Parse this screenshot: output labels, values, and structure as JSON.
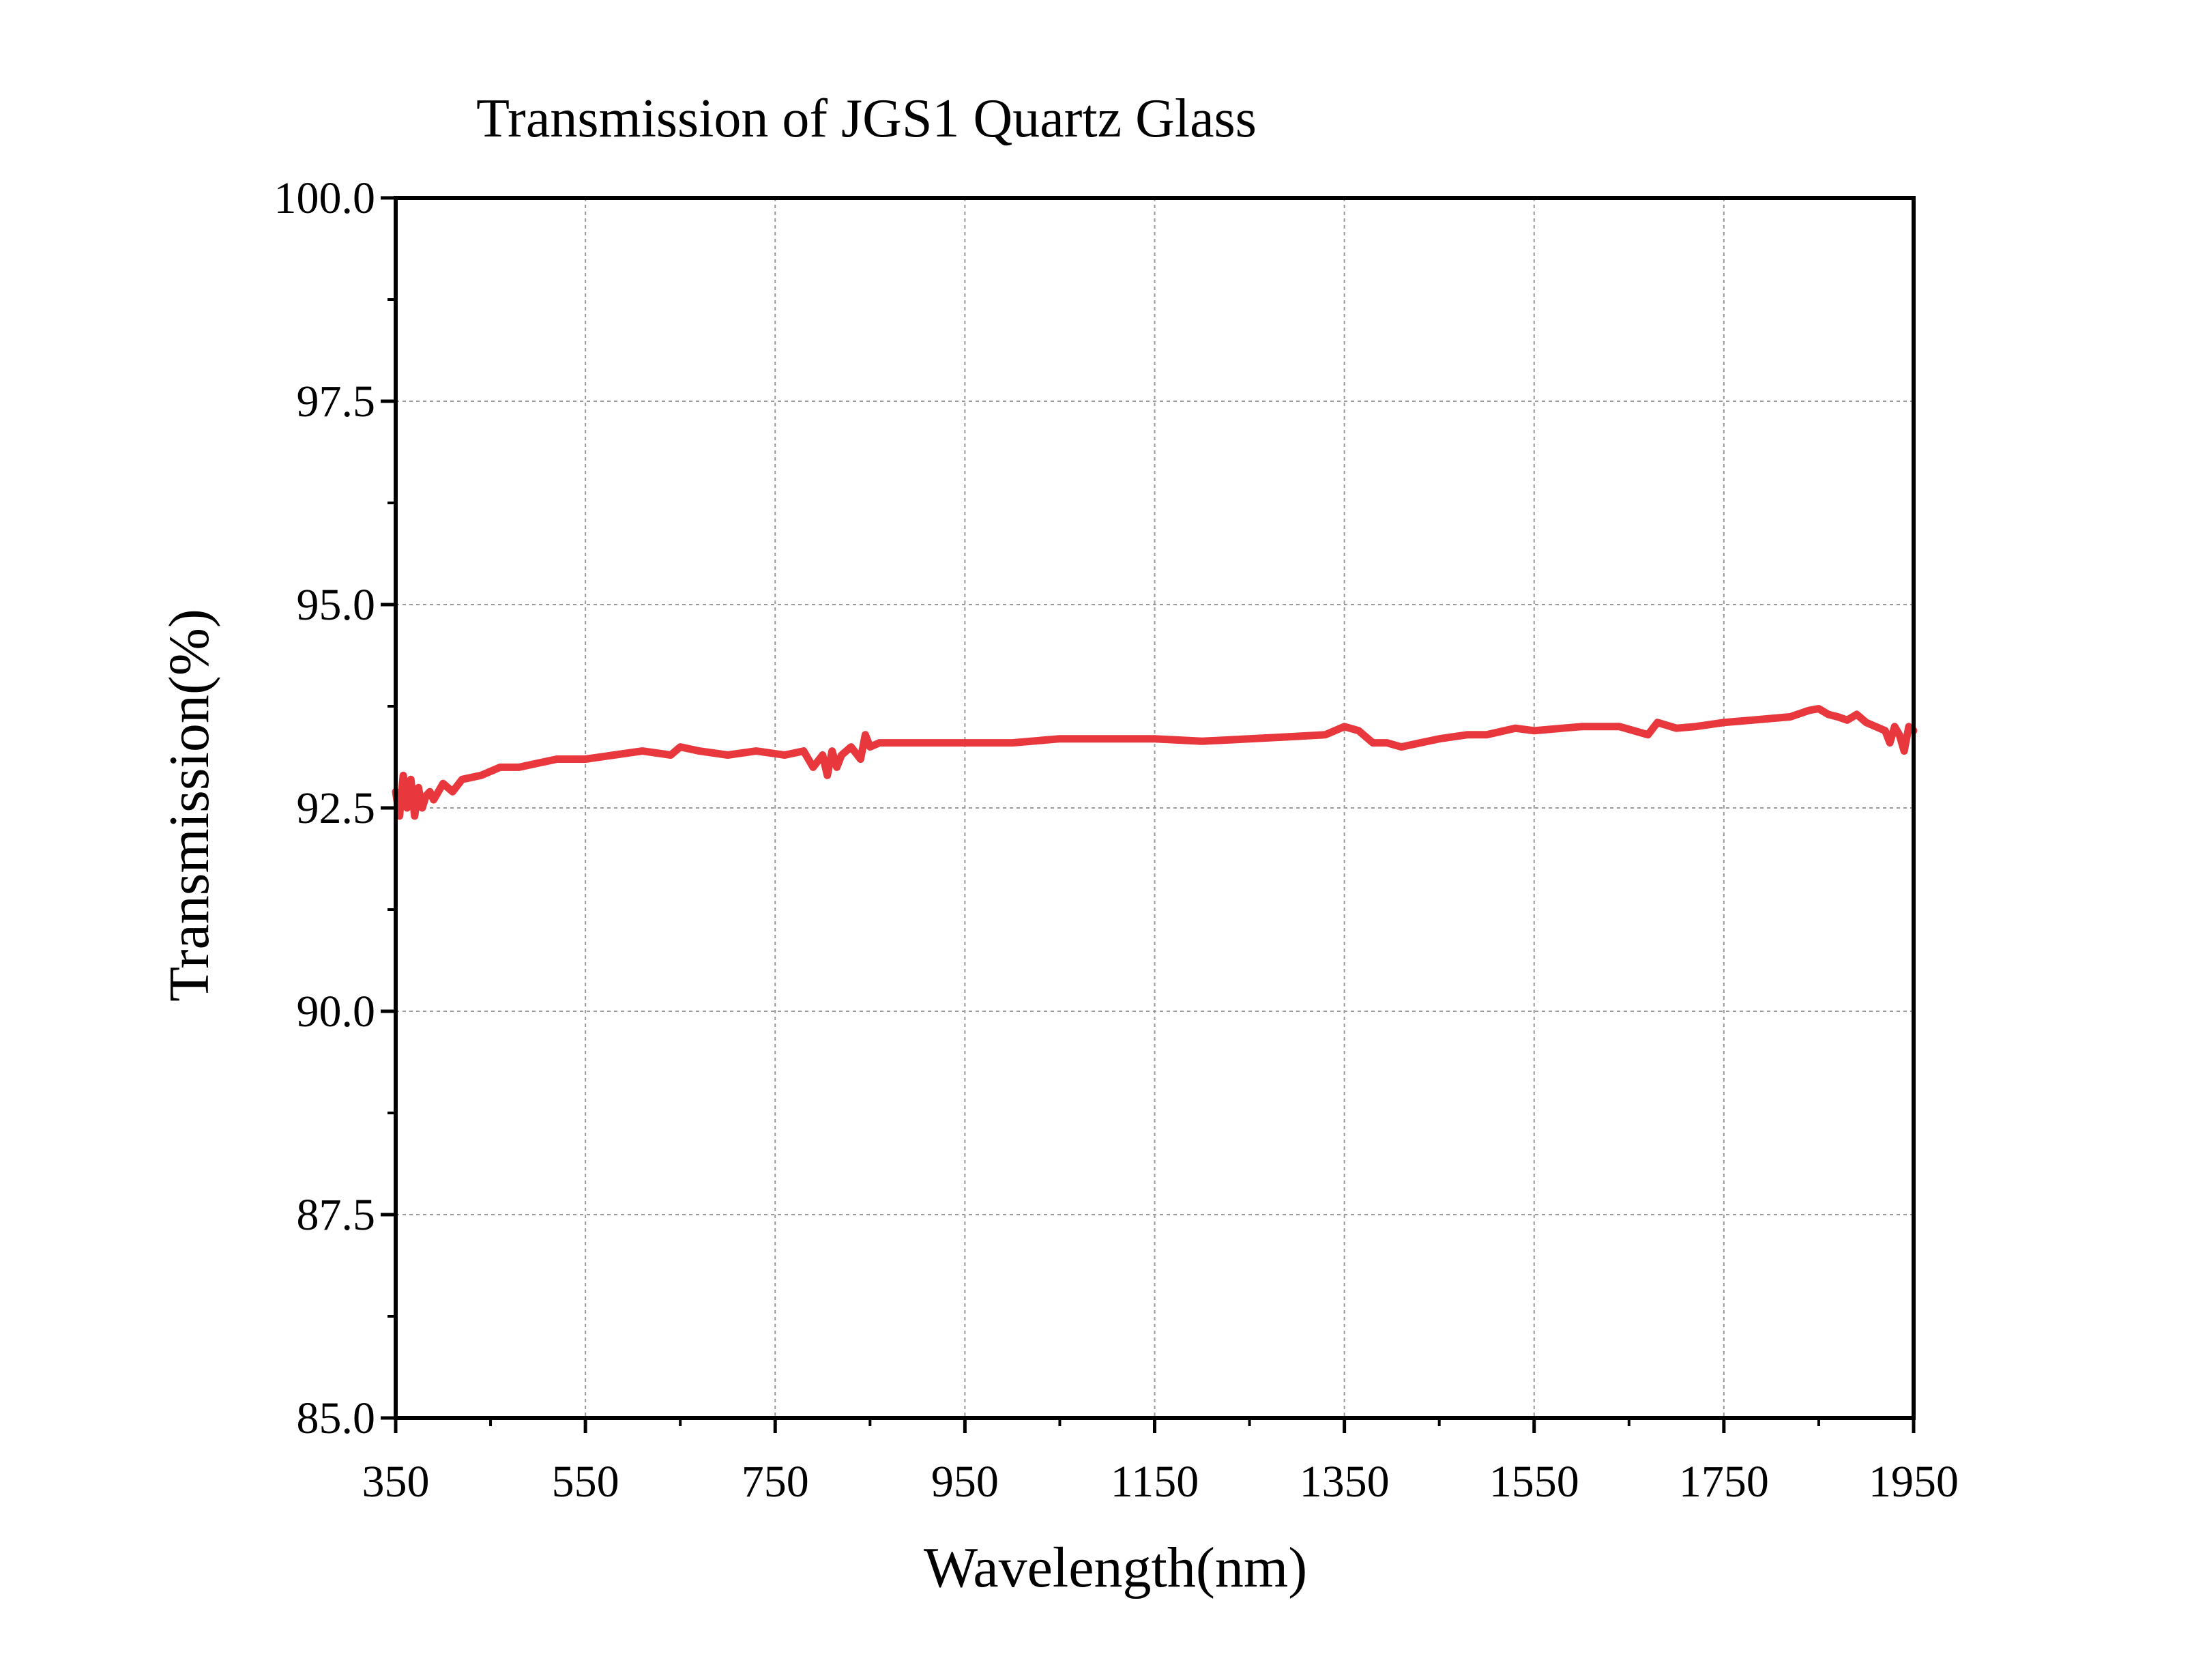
{
  "chart_data": {
    "type": "line",
    "title": "Transmission of JGS1 Quartz Glass",
    "xlabel": "Wavelength(nm)",
    "ylabel": "Transmission(%)",
    "xlim": [
      350,
      1950
    ],
    "ylim": [
      85.0,
      100.0
    ],
    "x_ticks": [
      350,
      550,
      750,
      950,
      1150,
      1350,
      1550,
      1750,
      1950
    ],
    "x_tick_labels": [
      "350",
      "550",
      "750",
      "950",
      "1150",
      "1350",
      "1550",
      "1750",
      "1950"
    ],
    "y_ticks": [
      85.0,
      87.5,
      90.0,
      92.5,
      95.0,
      97.5,
      100.0
    ],
    "y_tick_labels": [
      "85.0",
      "87.5",
      "90.0",
      "92.5",
      "95.0",
      "97.5",
      "100.0"
    ],
    "grid": true,
    "legend": false,
    "series": [
      {
        "color": "#e8383d",
        "x": [
          350,
          354,
          358,
          362,
          366,
          370,
          374,
          378,
          382,
          386,
          390,
          400,
          410,
          420,
          440,
          460,
          480,
          500,
          520,
          550,
          580,
          610,
          640,
          650,
          670,
          700,
          730,
          760,
          780,
          790,
          800,
          805,
          810,
          815,
          820,
          830,
          840,
          845,
          850,
          860,
          880,
          900,
          950,
          1000,
          1050,
          1100,
          1150,
          1200,
          1250,
          1300,
          1330,
          1350,
          1365,
          1380,
          1395,
          1410,
          1430,
          1450,
          1480,
          1500,
          1530,
          1550,
          1580,
          1600,
          1640,
          1670,
          1680,
          1700,
          1720,
          1750,
          1780,
          1800,
          1820,
          1840,
          1850,
          1860,
          1870,
          1880,
          1890,
          1900,
          1910,
          1920,
          1925,
          1930,
          1935,
          1940,
          1945,
          1950
        ],
        "y": [
          92.7,
          92.4,
          92.9,
          92.5,
          92.85,
          92.4,
          92.75,
          92.5,
          92.65,
          92.7,
          92.6,
          92.8,
          92.7,
          92.85,
          92.9,
          93.0,
          93.0,
          93.05,
          93.1,
          93.1,
          93.15,
          93.2,
          93.15,
          93.25,
          93.2,
          93.15,
          93.2,
          93.15,
          93.2,
          93.0,
          93.15,
          92.9,
          93.2,
          93.0,
          93.15,
          93.25,
          93.1,
          93.4,
          93.25,
          93.3,
          93.3,
          93.3,
          93.3,
          93.3,
          93.35,
          93.35,
          93.35,
          93.32,
          93.35,
          93.38,
          93.4,
          93.5,
          93.45,
          93.3,
          93.3,
          93.25,
          93.3,
          93.35,
          93.4,
          93.4,
          93.48,
          93.45,
          93.48,
          93.5,
          93.5,
          93.4,
          93.55,
          93.48,
          93.5,
          93.55,
          93.58,
          93.6,
          93.62,
          93.7,
          93.72,
          93.65,
          93.62,
          93.58,
          93.65,
          93.55,
          93.5,
          93.45,
          93.3,
          93.5,
          93.4,
          93.2,
          93.5,
          93.45
        ]
      }
    ]
  }
}
